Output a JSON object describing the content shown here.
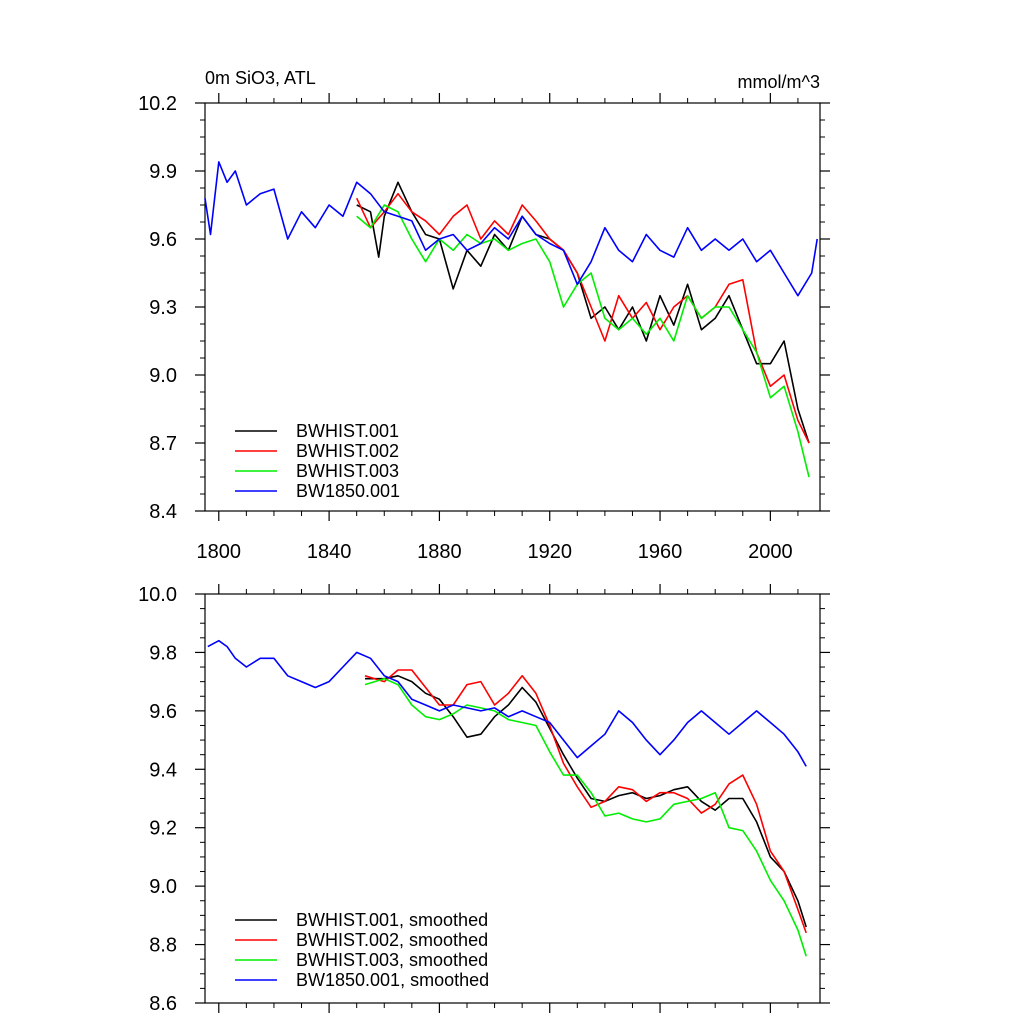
{
  "chart_data": [
    {
      "type": "line",
      "title": "0m SiO3, ATL",
      "units": "mmol/m^3",
      "xlim": [
        1795,
        2018
      ],
      "ylim": [
        8.4,
        10.2
      ],
      "x_ticks": [
        1800,
        1840,
        1880,
        1920,
        1960,
        2000
      ],
      "x_tick_labels": [
        "1800",
        "1840",
        "1880",
        "1920",
        "1960",
        "2000"
      ],
      "y_ticks": [
        8.4,
        8.7,
        9.0,
        9.3,
        9.6,
        9.9,
        10.2
      ],
      "y_tick_labels": [
        "8.4",
        "8.7",
        "9.0",
        "9.3",
        "9.6",
        "9.9",
        "10.2"
      ],
      "grid": false,
      "legend_position": "bottom-left",
      "series": [
        {
          "name": "BWHIST.001",
          "color": "#000000",
          "x": [
            1850,
            1855,
            1858,
            1860,
            1865,
            1870,
            1875,
            1880,
            1885,
            1890,
            1895,
            1900,
            1905,
            1910,
            1915,
            1920,
            1925,
            1930,
            1935,
            1940,
            1945,
            1950,
            1955,
            1960,
            1965,
            1970,
            1975,
            1980,
            1985,
            1990,
            1995,
            2000,
            2005,
            2010,
            2014
          ],
          "y": [
            9.75,
            9.72,
            9.52,
            9.7,
            9.85,
            9.72,
            9.62,
            9.6,
            9.38,
            9.55,
            9.48,
            9.62,
            9.55,
            9.7,
            9.62,
            9.6,
            9.55,
            9.45,
            9.25,
            9.3,
            9.2,
            9.3,
            9.15,
            9.35,
            9.22,
            9.4,
            9.2,
            9.25,
            9.35,
            9.2,
            9.05,
            9.05,
            9.15,
            8.85,
            8.7
          ]
        },
        {
          "name": "BWHIST.002",
          "color": "#ff0000",
          "x": [
            1850,
            1855,
            1860,
            1865,
            1870,
            1875,
            1880,
            1885,
            1890,
            1895,
            1900,
            1905,
            1910,
            1915,
            1920,
            1925,
            1930,
            1935,
            1940,
            1945,
            1950,
            1955,
            1960,
            1965,
            1970,
            1975,
            1980,
            1985,
            1990,
            1995,
            2000,
            2005,
            2010,
            2014
          ],
          "y": [
            9.78,
            9.65,
            9.72,
            9.8,
            9.72,
            9.68,
            9.62,
            9.7,
            9.75,
            9.6,
            9.68,
            9.62,
            9.75,
            9.68,
            9.6,
            9.55,
            9.45,
            9.3,
            9.15,
            9.35,
            9.25,
            9.32,
            9.2,
            9.3,
            9.35,
            9.25,
            9.3,
            9.4,
            9.42,
            9.1,
            8.95,
            9.0,
            8.8,
            8.7
          ]
        },
        {
          "name": "BWHIST.003",
          "color": "#00ee00",
          "x": [
            1850,
            1855,
            1860,
            1865,
            1870,
            1875,
            1880,
            1885,
            1890,
            1895,
            1900,
            1905,
            1910,
            1915,
            1920,
            1925,
            1930,
            1935,
            1940,
            1945,
            1950,
            1955,
            1960,
            1965,
            1970,
            1975,
            1980,
            1985,
            1990,
            1995,
            2000,
            2005,
            2010,
            2014
          ],
          "y": [
            9.7,
            9.65,
            9.75,
            9.72,
            9.6,
            9.5,
            9.6,
            9.55,
            9.62,
            9.58,
            9.6,
            9.55,
            9.58,
            9.6,
            9.5,
            9.3,
            9.4,
            9.45,
            9.25,
            9.2,
            9.25,
            9.18,
            9.25,
            9.15,
            9.35,
            9.25,
            9.3,
            9.3,
            9.2,
            9.1,
            8.9,
            8.95,
            8.75,
            8.55
          ]
        },
        {
          "name": "BW1850.001",
          "color": "#0000ff",
          "x": [
            1795,
            1797,
            1800,
            1803,
            1806,
            1810,
            1815,
            1820,
            1825,
            1830,
            1835,
            1840,
            1845,
            1850,
            1855,
            1860,
            1865,
            1870,
            1875,
            1880,
            1885,
            1890,
            1895,
            1900,
            1905,
            1910,
            1915,
            1920,
            1925,
            1930,
            1935,
            1940,
            1945,
            1950,
            1955,
            1960,
            1965,
            1970,
            1975,
            1980,
            1985,
            1990,
            1995,
            2000,
            2005,
            2010,
            2015,
            2017
          ],
          "y": [
            9.78,
            9.62,
            9.94,
            9.85,
            9.9,
            9.75,
            9.8,
            9.82,
            9.6,
            9.72,
            9.65,
            9.75,
            9.7,
            9.85,
            9.8,
            9.72,
            9.7,
            9.68,
            9.55,
            9.6,
            9.62,
            9.55,
            9.58,
            9.65,
            9.6,
            9.7,
            9.62,
            9.58,
            9.55,
            9.4,
            9.5,
            9.65,
            9.55,
            9.5,
            9.62,
            9.55,
            9.52,
            9.65,
            9.55,
            9.6,
            9.55,
            9.6,
            9.5,
            9.55,
            9.45,
            9.35,
            9.45,
            9.6
          ]
        }
      ]
    },
    {
      "type": "line",
      "xlim": [
        1795,
        2018
      ],
      "ylim": [
        8.6,
        10.0
      ],
      "x_ticks": [
        1800,
        1840,
        1880,
        1920,
        1960,
        2000
      ],
      "y_ticks": [
        8.6,
        8.8,
        9.0,
        9.2,
        9.4,
        9.6,
        9.8,
        10.0
      ],
      "y_tick_labels": [
        "8.6",
        "8.8",
        "9.0",
        "9.2",
        "9.4",
        "9.6",
        "9.8",
        "10.0"
      ],
      "grid": false,
      "legend_position": "bottom-left",
      "series": [
        {
          "name": "BWHIST.001, smoothed",
          "color": "#000000",
          "x": [
            1853,
            1860,
            1865,
            1870,
            1875,
            1880,
            1885,
            1890,
            1895,
            1900,
            1905,
            1910,
            1915,
            1920,
            1925,
            1930,
            1935,
            1940,
            1945,
            1950,
            1955,
            1960,
            1965,
            1970,
            1975,
            1980,
            1985,
            1990,
            1995,
            2000,
            2005,
            2010,
            2013
          ],
          "y": [
            9.71,
            9.71,
            9.72,
            9.7,
            9.66,
            9.64,
            9.58,
            9.51,
            9.52,
            9.58,
            9.62,
            9.68,
            9.63,
            9.54,
            9.45,
            9.37,
            9.3,
            9.29,
            9.31,
            9.32,
            9.3,
            9.31,
            9.33,
            9.34,
            9.29,
            9.26,
            9.3,
            9.3,
            9.22,
            9.1,
            9.05,
            8.95,
            8.86
          ]
        },
        {
          "name": "BWHIST.002, smoothed",
          "color": "#ff0000",
          "x": [
            1853,
            1860,
            1865,
            1870,
            1875,
            1880,
            1885,
            1890,
            1895,
            1900,
            1905,
            1910,
            1915,
            1920,
            1925,
            1930,
            1935,
            1940,
            1945,
            1950,
            1955,
            1960,
            1965,
            1970,
            1975,
            1980,
            1985,
            1990,
            1995,
            2000,
            2005,
            2010,
            2013
          ],
          "y": [
            9.72,
            9.7,
            9.74,
            9.74,
            9.68,
            9.62,
            9.62,
            9.69,
            9.7,
            9.62,
            9.66,
            9.72,
            9.66,
            9.55,
            9.42,
            9.34,
            9.27,
            9.29,
            9.34,
            9.33,
            9.29,
            9.32,
            9.32,
            9.3,
            9.25,
            9.28,
            9.35,
            9.38,
            9.28,
            9.12,
            9.05,
            8.92,
            8.84
          ]
        },
        {
          "name": "BWHIST.003, smoothed",
          "color": "#00ee00",
          "x": [
            1853,
            1860,
            1865,
            1870,
            1875,
            1880,
            1885,
            1890,
            1895,
            1900,
            1905,
            1910,
            1915,
            1920,
            1925,
            1930,
            1935,
            1940,
            1945,
            1950,
            1955,
            1960,
            1965,
            1970,
            1975,
            1980,
            1985,
            1990,
            1995,
            2000,
            2005,
            2010,
            2013
          ],
          "y": [
            9.69,
            9.71,
            9.69,
            9.62,
            9.58,
            9.57,
            9.59,
            9.62,
            9.61,
            9.6,
            9.57,
            9.56,
            9.55,
            9.46,
            9.38,
            9.38,
            9.32,
            9.24,
            9.25,
            9.23,
            9.22,
            9.23,
            9.28,
            9.29,
            9.3,
            9.32,
            9.2,
            9.19,
            9.12,
            9.02,
            8.95,
            8.85,
            8.76
          ]
        },
        {
          "name": "BW1850.001, smoothed",
          "color": "#0000ff",
          "x": [
            1796,
            1800,
            1803,
            1806,
            1810,
            1815,
            1820,
            1825,
            1830,
            1835,
            1840,
            1845,
            1850,
            1855,
            1860,
            1865,
            1870,
            1875,
            1880,
            1885,
            1890,
            1895,
            1900,
            1905,
            1910,
            1915,
            1920,
            1925,
            1930,
            1935,
            1940,
            1945,
            1950,
            1955,
            1960,
            1965,
            1970,
            1975,
            1980,
            1985,
            1990,
            1995,
            2000,
            2005,
            2010,
            2013
          ],
          "y": [
            9.82,
            9.84,
            9.82,
            9.78,
            9.75,
            9.78,
            9.78,
            9.72,
            9.7,
            9.68,
            9.7,
            9.75,
            9.8,
            9.78,
            9.72,
            9.7,
            9.64,
            9.62,
            9.6,
            9.62,
            9.61,
            9.6,
            9.61,
            9.58,
            9.6,
            9.58,
            9.56,
            9.5,
            9.44,
            9.48,
            9.52,
            9.6,
            9.56,
            9.5,
            9.45,
            9.5,
            9.56,
            9.6,
            9.56,
            9.52,
            9.56,
            9.6,
            9.56,
            9.52,
            9.46,
            9.41
          ]
        }
      ]
    }
  ]
}
